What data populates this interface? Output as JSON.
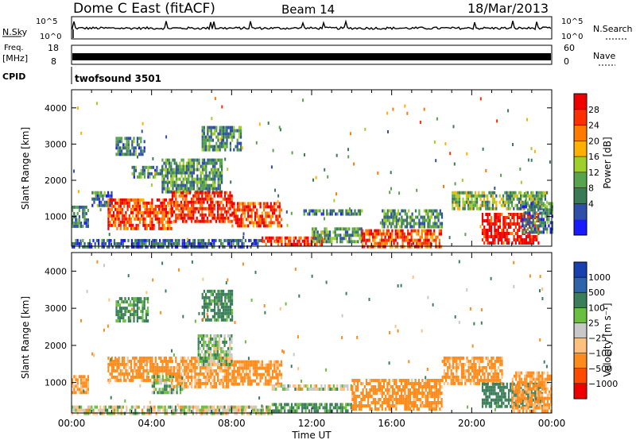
{
  "header": {
    "radar": "Dome C East (fitACF)",
    "beam": "Beam 14",
    "date": "18/Mar/2013"
  },
  "top_panels": {
    "nsky_label": "N.Sky",
    "nsearch_label": "N.Search",
    "noise_ticks": [
      "10^5",
      "10^0"
    ],
    "freq_label": "Freq.",
    "freq_unit": "[MHz]",
    "freq_ticks": [
      "18",
      "8"
    ],
    "nave_label": "Nave",
    "nave_ticks": [
      "60",
      "0"
    ],
    "cpid_label": "CPID",
    "cpid_value": "twofsound 3501"
  },
  "colors": {
    "power": [
      "#1a1aff",
      "#2e50a6",
      "#3b7a56",
      "#58a34e",
      "#9fcf2a",
      "#ffb000",
      "#ff7a00",
      "#ff3000",
      "#ee0000"
    ],
    "velocity": [
      "#ee0000",
      "#ff4a00",
      "#ff8c1a",
      "#ffc080",
      "#c8c8c8",
      "#6abf40",
      "#3b7f5a",
      "#2e64aa",
      "#1a3fb0"
    ]
  },
  "power_scale": {
    "label": "Power [dB]",
    "ticks": [
      "28",
      "24",
      "20",
      "16",
      "12",
      "8",
      "4"
    ]
  },
  "velocity_scale": {
    "label": "Velocity [m s⁻¹]",
    "ticks": [
      "1000",
      "500",
      "100",
      "25",
      "−25",
      "−100",
      "−500",
      "−1000"
    ]
  },
  "x_axis": {
    "label": "Time UT",
    "ticks": [
      "00:00",
      "04:00",
      "08:00",
      "12:00",
      "16:00",
      "20:00",
      "00:00"
    ]
  },
  "chart_data": {
    "type": "heatmap",
    "panels": [
      {
        "name": "power",
        "ylabel": "Slant Range [km]",
        "yticks": [
          1000,
          2000,
          3000,
          4000
        ],
        "ylim": [
          180,
          4500
        ],
        "xlim": [
          0,
          24
        ],
        "units": "dB",
        "regions": [
          {
            "t": [
              0.0,
              0.8
            ],
            "r": [
              700,
              1300
            ],
            "v": 8
          },
          {
            "t": [
              0.0,
              9.5
            ],
            "r": [
              200,
              380
            ],
            "v": 6
          },
          {
            "t": [
              1.0,
              2.0
            ],
            "r": [
              1300,
              1700
            ],
            "v": 8
          },
          {
            "t": [
              2.2,
              3.6
            ],
            "r": [
              2700,
              3200
            ],
            "v": 8
          },
          {
            "t": [
              3.0,
              4.5
            ],
            "r": [
              2100,
              2400
            ],
            "v": 9
          },
          {
            "t": [
              1.8,
              5.0
            ],
            "r": [
              700,
              1500
            ],
            "v": 24
          },
          {
            "t": [
              4.5,
              7.5
            ],
            "r": [
              1700,
              2600
            ],
            "v": 10
          },
          {
            "t": [
              5.0,
              8.0
            ],
            "r": [
              900,
              1700
            ],
            "v": 26
          },
          {
            "t": [
              6.5,
              8.5
            ],
            "r": [
              2800,
              3500
            ],
            "v": 10
          },
          {
            "t": [
              8.0,
              10.5
            ],
            "r": [
              700,
              1400
            ],
            "v": 24
          },
          {
            "t": [
              9.5,
              12.5
            ],
            "r": [
              200,
              450
            ],
            "v": 26
          },
          {
            "t": [
              12.0,
              14.5
            ],
            "r": [
              300,
              700
            ],
            "v": 10
          },
          {
            "t": [
              11.5,
              14.5
            ],
            "r": [
              1050,
              1200
            ],
            "v": 8
          },
          {
            "t": [
              14.5,
              18.5
            ],
            "r": [
              200,
              650
            ],
            "v": 24
          },
          {
            "t": [
              15.5,
              18.5
            ],
            "r": [
              700,
              1200
            ],
            "v": 10
          },
          {
            "t": [
              19.0,
              23.8
            ],
            "r": [
              1200,
              1700
            ],
            "v": 12
          },
          {
            "t": [
              20.5,
              23.3
            ],
            "r": [
              250,
              1100
            ],
            "v": 28
          },
          {
            "t": [
              22.5,
              24.0
            ],
            "r": [
              600,
              1400
            ],
            "v": 8
          }
        ]
      },
      {
        "name": "velocity",
        "ylabel": "Slant Range [km]",
        "yticks": [
          1000,
          2000,
          3000,
          4000
        ],
        "ylim": [
          180,
          4500
        ],
        "xlim": [
          0,
          24
        ],
        "units": "m s-1",
        "regions": [
          {
            "t": [
              0.0,
              0.8
            ],
            "r": [
              700,
              1200
            ],
            "v": -150
          },
          {
            "t": [
              0.0,
              10.0
            ],
            "r": [
              200,
              380
            ],
            "v": 0
          },
          {
            "t": [
              2.2,
              3.8
            ],
            "r": [
              2700,
              3300
            ],
            "v": 150
          },
          {
            "t": [
              1.8,
              5.0
            ],
            "r": [
              1100,
              1700
            ],
            "v": -200
          },
          {
            "t": [
              4.0,
              5.5
            ],
            "r": [
              700,
              1200
            ],
            "v": 60
          },
          {
            "t": [
              5.0,
              8.0
            ],
            "r": [
              900,
              1700
            ],
            "v": -150
          },
          {
            "t": [
              6.3,
              8.0
            ],
            "r": [
              1500,
              2300
            ],
            "v": 60
          },
          {
            "t": [
              6.5,
              8.0
            ],
            "r": [
              2700,
              3500
            ],
            "v": 200
          },
          {
            "t": [
              8.0,
              10.5
            ],
            "r": [
              1000,
              1600
            ],
            "v": -180
          },
          {
            "t": [
              10.0,
              14.0
            ],
            "r": [
              850,
              950
            ],
            "v": 0
          },
          {
            "t": [
              10.0,
              14.0
            ],
            "r": [
              250,
              450
            ],
            "v": 150
          },
          {
            "t": [
              14.0,
              18.5
            ],
            "r": [
              250,
              1100
            ],
            "v": -200
          },
          {
            "t": [
              18.5,
              21.5
            ],
            "r": [
              1000,
              1700
            ],
            "v": -180
          },
          {
            "t": [
              20.5,
              23.5
            ],
            "r": [
              400,
              1000
            ],
            "v": 300
          },
          {
            "t": [
              22.0,
              24.0
            ],
            "r": [
              250,
              1300
            ],
            "v": -150
          }
        ]
      }
    ]
  }
}
